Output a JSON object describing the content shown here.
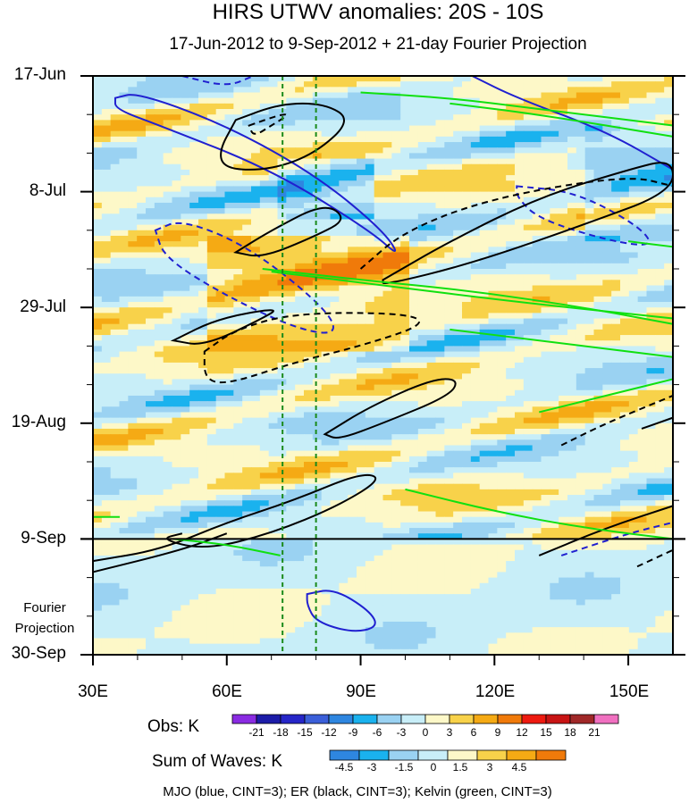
{
  "chart_data": {
    "type": "heatmap",
    "title": "HIRS UTWV anomalies: 20S - 10S",
    "subtitle": "17-Jun-2012 to 9-Sep-2012 + 21-day Fourier Projection",
    "x_axis": {
      "range": [
        30,
        160
      ],
      "ticks": [
        30,
        60,
        90,
        120,
        150
      ],
      "tick_labels": [
        "30E",
        "60E",
        "90E",
        "120E",
        "150E"
      ]
    },
    "y_axis": {
      "reversed": true,
      "range_days": [
        0,
        105
      ],
      "ticks_days": [
        0,
        21,
        42,
        63,
        84,
        105
      ],
      "tick_labels": [
        "17-Jun",
        "8-Jul",
        "29-Jul",
        "19-Aug",
        "9-Sep",
        "30-Sep"
      ],
      "minor_tick_interval_days": 7
    },
    "forecast_start_day": 84,
    "fourier_label_line1": "Fourier",
    "fourier_label_line2": "Projection",
    "reference_lines_lon": [
      72.5,
      80
    ],
    "obs_colorbar": {
      "label": "Obs: K",
      "levels": [
        "-21",
        "-18",
        "-15",
        "-12",
        "-9",
        "-6",
        "-3",
        "0",
        "3",
        "6",
        "9",
        "12",
        "15",
        "18",
        "21"
      ],
      "colors": [
        "#8a2be2",
        "#1c1ca8",
        "#2626c8",
        "#3b5fd9",
        "#2e86e0",
        "#1ab2ee",
        "#9ad2f2",
        "#c8eef8",
        "#fdf8c8",
        "#f8d24a",
        "#f5aa14",
        "#f07a0a",
        "#ee1a10",
        "#c81414",
        "#a02828",
        "#f070c0"
      ]
    },
    "waves_colorbar": {
      "label": "Sum of Waves: K",
      "levels": [
        "-4.5",
        "-3",
        "-1.5",
        "0",
        "1.5",
        "3",
        "4.5"
      ],
      "colors": [
        "#2e86e0",
        "#1ab2ee",
        "#9ad2f2",
        "#c8eef8",
        "#fdf8c8",
        "#f8d24a",
        "#f5aa14",
        "#f07a0a"
      ]
    },
    "contours": [
      {
        "wave": "MJO",
        "color": "#2020d0",
        "cint": 3
      },
      {
        "wave": "ER",
        "color": "#000000",
        "cint": 3
      },
      {
        "wave": "Kelvin",
        "color": "#10e010",
        "cint": 3
      }
    ],
    "footnote": "MJO (blue, CINT=3); ER (black, CINT=3); Kelvin (green, CINT=3)"
  }
}
